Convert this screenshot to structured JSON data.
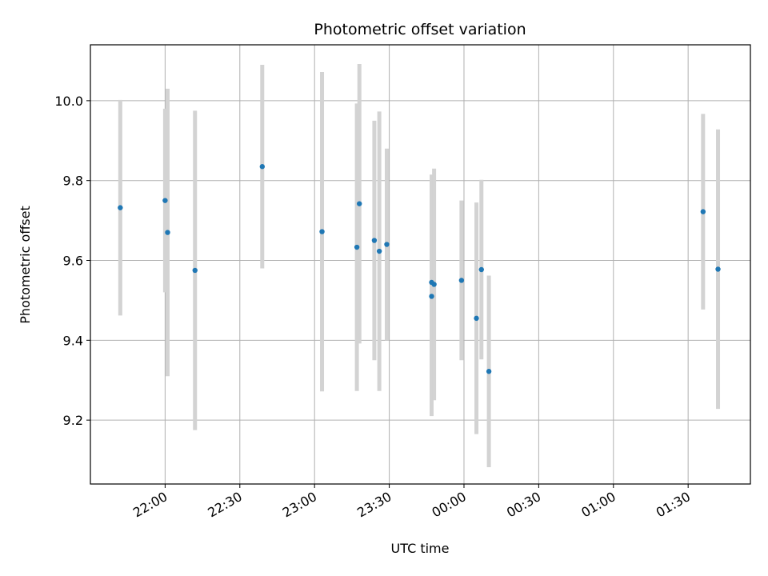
{
  "chart_data": {
    "type": "scatter",
    "title": "Photometric offset variation",
    "xlabel": "UTC time",
    "ylabel": "Photometric offset",
    "grid": true,
    "x_ticks": [
      "22:00",
      "22:30",
      "23:00",
      "23:30",
      "00:00",
      "00:30",
      "01:00",
      "01:30"
    ],
    "y_ticks": [
      9.2,
      9.4,
      9.6,
      9.8,
      10.0
    ],
    "y_tick_labels": [
      "9.2",
      "9.4",
      "9.6",
      "9.8",
      "10.0"
    ],
    "xlim": [
      "21:30",
      "01:55"
    ],
    "ylim": [
      9.04,
      10.14
    ],
    "marker_color": "#1f77b4",
    "errorbar_color": "#d3d3d3",
    "series": [
      {
        "points": [
          {
            "x": "21:42",
            "y": 9.732,
            "err": 0.27
          },
          {
            "x": "22:00",
            "y": 9.75,
            "err": 0.23
          },
          {
            "x": "22:01",
            "y": 9.67,
            "err": 0.36
          },
          {
            "x": "22:12",
            "y": 9.575,
            "err": 0.4
          },
          {
            "x": "22:39",
            "y": 9.835,
            "err": 0.255
          },
          {
            "x": "23:03",
            "y": 9.672,
            "err": 0.4
          },
          {
            "x": "23:17",
            "y": 9.633,
            "err": 0.36
          },
          {
            "x": "23:18",
            "y": 9.742,
            "err": 0.35
          },
          {
            "x": "23:24",
            "y": 9.65,
            "err": 0.3
          },
          {
            "x": "23:26",
            "y": 9.623,
            "err": 0.35
          },
          {
            "x": "23:29",
            "y": 9.64,
            "err": 0.24
          },
          {
            "x": "23:47",
            "y": 9.545,
            "err": 0.27
          },
          {
            "x": "23:47",
            "y": 9.51,
            "err": 0.3
          },
          {
            "x": "23:48",
            "y": 9.54,
            "err": 0.29
          },
          {
            "x": "23:59",
            "y": 9.55,
            "err": 0.2
          },
          {
            "x": "00:05",
            "y": 9.455,
            "err": 0.29
          },
          {
            "x": "00:07",
            "y": 9.577,
            "err": 0.225
          },
          {
            "x": "00:10",
            "y": 9.322,
            "err": 0.24
          },
          {
            "x": "01:36",
            "y": 9.722,
            "err": 0.245
          },
          {
            "x": "01:42",
            "y": 9.578,
            "err": 0.35
          }
        ]
      }
    ]
  }
}
